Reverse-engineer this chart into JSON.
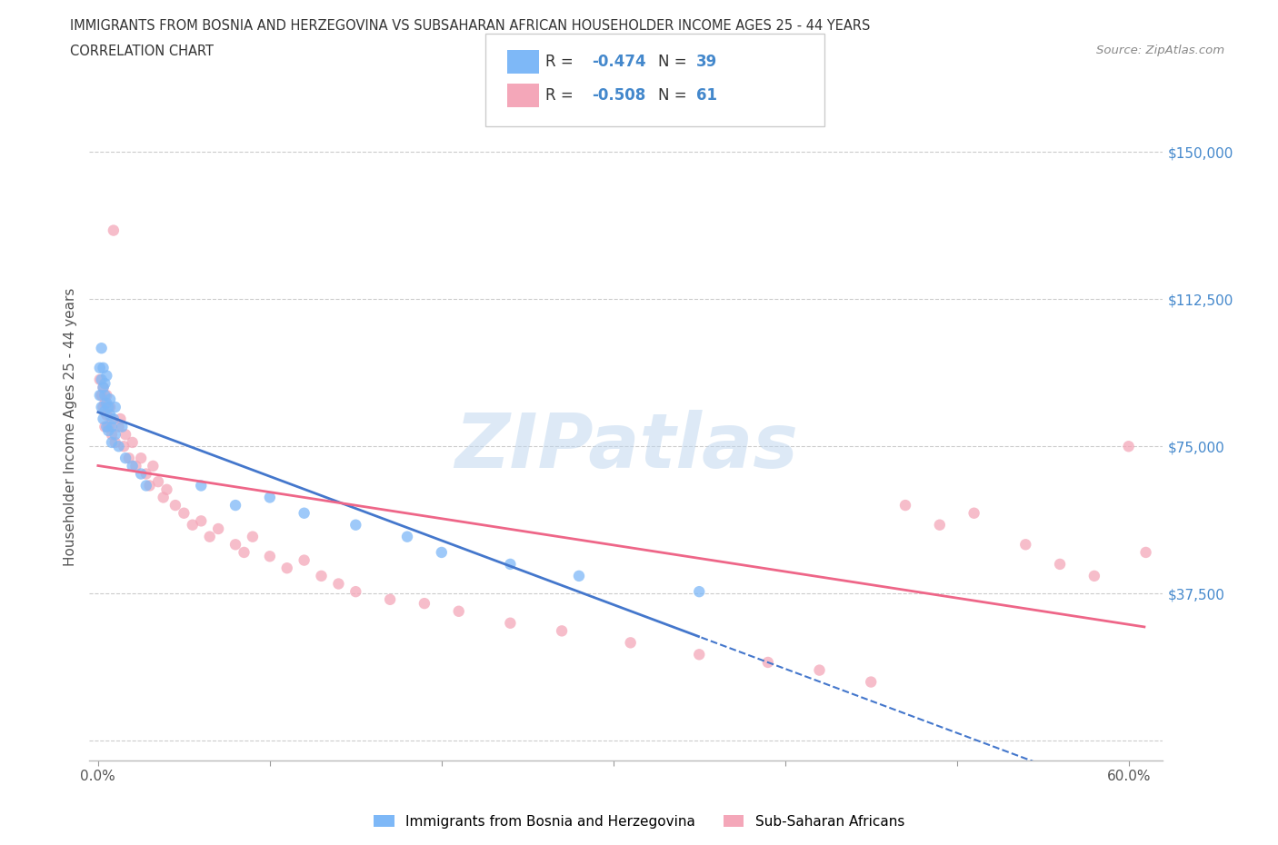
{
  "title": "IMMIGRANTS FROM BOSNIA AND HERZEGOVINA VS SUBSAHARAN AFRICAN HOUSEHOLDER INCOME AGES 25 - 44 YEARS",
  "subtitle": "CORRELATION CHART",
  "source": "Source: ZipAtlas.com",
  "ylabel": "Householder Income Ages 25 - 44 years",
  "xlim": [
    -0.005,
    0.62
  ],
  "ylim": [
    -5000,
    165000
  ],
  "yticks": [
    0,
    37500,
    75000,
    112500,
    150000
  ],
  "ytick_labels": [
    "",
    "$37,500",
    "$75,000",
    "$112,500",
    "$150,000"
  ],
  "xtick_positions": [
    0.0,
    0.1,
    0.2,
    0.3,
    0.4,
    0.5,
    0.6
  ],
  "xtick_labels": [
    "0.0%",
    "",
    "",
    "",
    "",
    "",
    "60.0%"
  ],
  "bosnia_color": "#7EB8F7",
  "africa_color": "#F4A7B9",
  "line_color_bosnia": "#4477CC",
  "line_color_africa": "#EE6688",
  "bosnia_R": -0.474,
  "bosnia_N": 39,
  "africa_R": -0.508,
  "africa_N": 61,
  "legend_label_1": "Immigrants from Bosnia and Herzegovina",
  "legend_label_2": "Sub-Saharan Africans",
  "watermark": "ZIPatlas",
  "grid_color": "#CCCCCC",
  "bg_color": "#FFFFFF",
  "title_color": "#333333",
  "text_color_blue": "#4488CC",
  "bosnia_x": [
    0.001,
    0.001,
    0.002,
    0.002,
    0.002,
    0.003,
    0.003,
    0.003,
    0.004,
    0.004,
    0.004,
    0.005,
    0.005,
    0.005,
    0.006,
    0.006,
    0.007,
    0.007,
    0.008,
    0.008,
    0.009,
    0.01,
    0.01,
    0.012,
    0.014,
    0.016,
    0.02,
    0.025,
    0.028,
    0.06,
    0.08,
    0.1,
    0.12,
    0.15,
    0.18,
    0.2,
    0.24,
    0.28,
    0.35
  ],
  "bosnia_y": [
    95000,
    88000,
    92000,
    85000,
    100000,
    90000,
    82000,
    95000,
    88000,
    84000,
    91000,
    86000,
    80000,
    93000,
    85000,
    79000,
    83000,
    87000,
    80000,
    76000,
    82000,
    78000,
    85000,
    75000,
    80000,
    72000,
    70000,
    68000,
    65000,
    65000,
    60000,
    62000,
    58000,
    55000,
    52000,
    48000,
    45000,
    42000,
    38000
  ],
  "africa_x": [
    0.001,
    0.002,
    0.003,
    0.003,
    0.004,
    0.004,
    0.005,
    0.005,
    0.006,
    0.007,
    0.008,
    0.008,
    0.009,
    0.01,
    0.012,
    0.013,
    0.015,
    0.016,
    0.018,
    0.02,
    0.022,
    0.025,
    0.028,
    0.03,
    0.032,
    0.035,
    0.038,
    0.04,
    0.045,
    0.05,
    0.055,
    0.06,
    0.065,
    0.07,
    0.08,
    0.085,
    0.09,
    0.1,
    0.11,
    0.12,
    0.13,
    0.14,
    0.15,
    0.17,
    0.19,
    0.21,
    0.24,
    0.27,
    0.31,
    0.35,
    0.39,
    0.42,
    0.45,
    0.47,
    0.49,
    0.51,
    0.54,
    0.56,
    0.58,
    0.6,
    0.61
  ],
  "africa_y": [
    92000,
    88000,
    90000,
    85000,
    86000,
    80000,
    83000,
    88000,
    80000,
    85000,
    78000,
    82000,
    130000,
    76000,
    80000,
    82000,
    75000,
    78000,
    72000,
    76000,
    70000,
    72000,
    68000,
    65000,
    70000,
    66000,
    62000,
    64000,
    60000,
    58000,
    55000,
    56000,
    52000,
    54000,
    50000,
    48000,
    52000,
    47000,
    44000,
    46000,
    42000,
    40000,
    38000,
    36000,
    35000,
    33000,
    30000,
    28000,
    25000,
    22000,
    20000,
    18000,
    15000,
    60000,
    55000,
    58000,
    50000,
    45000,
    42000,
    75000,
    48000
  ]
}
